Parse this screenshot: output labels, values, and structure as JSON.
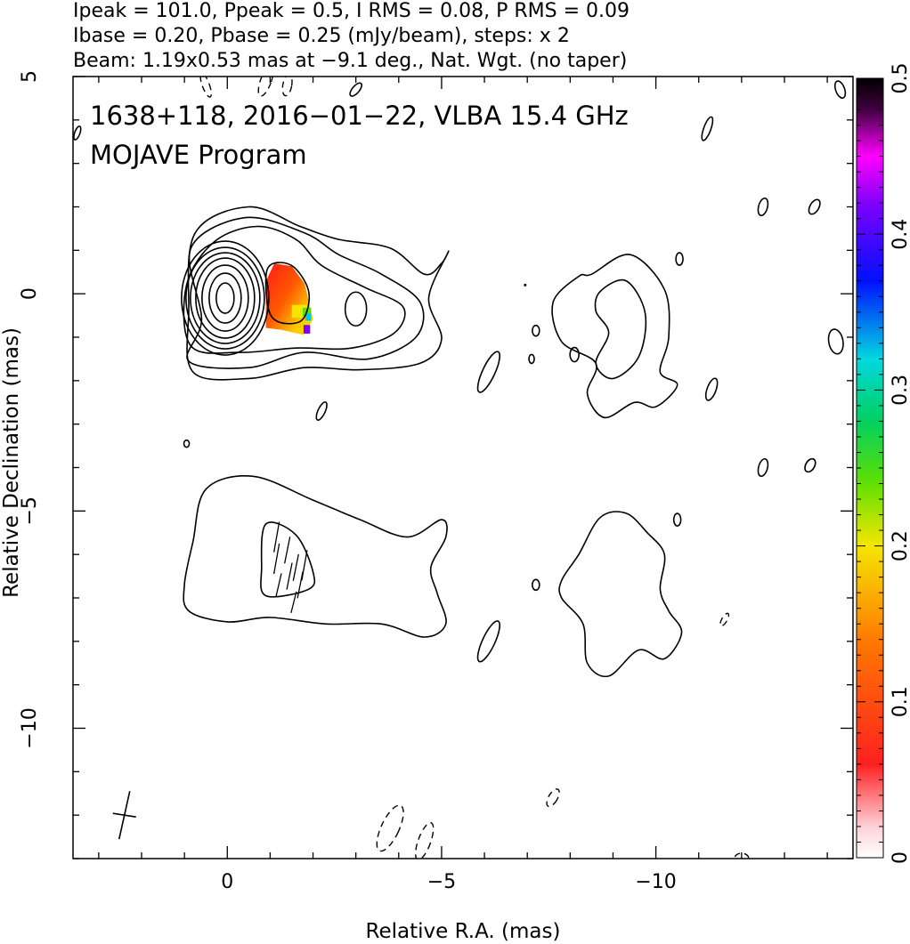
{
  "header": {
    "line1": "Ipeak = 101.0, Ppeak = 0.5, I RMS = 0.08, P RMS = 0.09",
    "line2": "Ibase = 0.20, Pbase = 0.25 (mJy/beam), steps: x 2",
    "line3": "Beam: 1.19x0.53 mas at −9.1 deg., Nat. Wgt. (no taper)"
  },
  "chart_data": [
    {
      "type": "heatmap",
      "title": "1638+118, 2016−01−22, VLBA 15.4 GHz",
      "subtitle": "MOJAVE Program",
      "xlabel": "Relative R.A. (mas)",
      "ylabel": "Relative Declination (mas)",
      "xlim": [
        3.6,
        -14.6
      ],
      "ylim": [
        -13.0,
        5.0
      ],
      "x_ticks": [
        0,
        -5,
        -10
      ],
      "x_tick_labels": [
        "0",
        "−5",
        "−10"
      ],
      "y_ticks": [
        5,
        0,
        -5,
        -10
      ],
      "y_tick_labels": [
        "5",
        "0",
        "−5",
        "−10"
      ],
      "grid": false,
      "colorbar": {
        "min": 0,
        "max": 0.5,
        "ticks": [
          0,
          0.1,
          0.2,
          0.3,
          0.4,
          0.5
        ],
        "tick_labels": [
          "0",
          "0.1",
          "0.2",
          "0.3",
          "0.4",
          "0.5"
        ]
      },
      "intensity_contours": {
        "center": [
          0.0,
          0.0
        ],
        "peak_mJy_per_beam": 101.0,
        "base_mJy_per_beam": 0.2,
        "step_factor": 2
      },
      "polarized_emission_region": {
        "ra_range": [
          -0.9,
          -2.0
        ],
        "dec_range": [
          0.7,
          -0.95
        ],
        "fractional_polarization_range": [
          0.07,
          0.45
        ]
      },
      "beam": {
        "position": [
          2.4,
          -12.0
        ],
        "major_mas": 1.19,
        "minor_mas": 0.53,
        "pa_deg": -9.1
      },
      "panels": [
        {
          "name": "total intensity with polarization",
          "dec_offset": 0
        },
        {
          "name": "polarization vectors",
          "dec_offset": -6.5
        }
      ]
    }
  ]
}
